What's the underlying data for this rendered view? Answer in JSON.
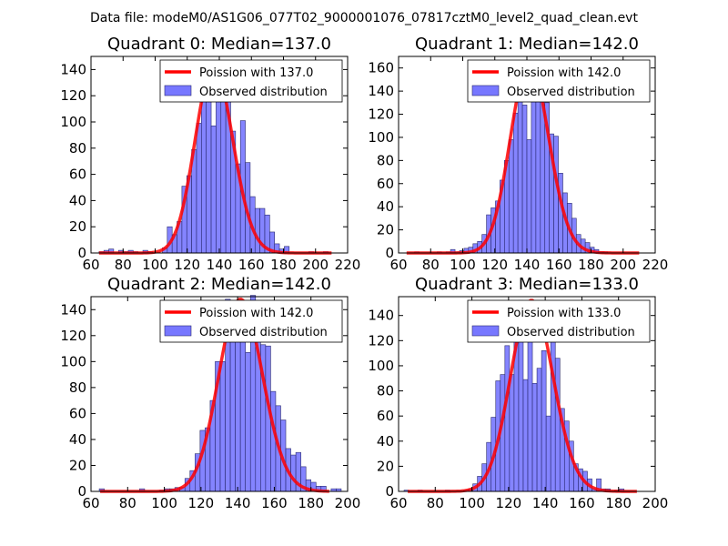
{
  "figure_title": "Data file: modeM0/AS1G06_077T02_9000001076_07817cztM0_level2_quad_clean.evt",
  "colors": {
    "bars": "#7777ff",
    "bar_edge": "#2a2a6e",
    "curve": "#ff0000",
    "background": "#ffffff"
  },
  "chart_data": [
    {
      "type": "bar",
      "title": "Quadrant 0: Median=137.0",
      "median": 137.0,
      "legend": [
        "Poission with 137.0",
        "Observed distribution"
      ],
      "legend_location": "top-right",
      "xlim": [
        60,
        220
      ],
      "ylim": [
        0,
        150
      ],
      "xticks": [
        60,
        80,
        100,
        120,
        140,
        160,
        180,
        200,
        220
      ],
      "yticks": [
        0,
        20,
        40,
        60,
        80,
        100,
        120,
        140
      ],
      "bins": {
        "start": 65,
        "width": 3.04,
        "counts": [
          1,
          2,
          3,
          0,
          2,
          1,
          2,
          1,
          0,
          2,
          1,
          0,
          0,
          4,
          20,
          14,
          24,
          51,
          59,
          79,
          99,
          142,
          143,
          97,
          130,
          130,
          133,
          93,
          68,
          101,
          69,
          43,
          34,
          34,
          29,
          16,
          7,
          3,
          5,
          0,
          0,
          0,
          0,
          1,
          0,
          0,
          1,
          0,
          0,
          0
        ]
      },
      "poisson": {
        "mean": 137.0,
        "peak": 143
      }
    },
    {
      "type": "bar",
      "title": "Quadrant 1: Median=142.0",
      "median": 142.0,
      "legend": [
        "Poission with 142.0",
        "Observed distribution"
      ],
      "legend_location": "top-right",
      "xlim": [
        60,
        220
      ],
      "ylim": [
        0,
        170
      ],
      "xticks": [
        60,
        80,
        100,
        120,
        140,
        160,
        180,
        200,
        220
      ],
      "yticks": [
        0,
        20,
        40,
        60,
        80,
        100,
        120,
        140,
        160
      ],
      "bins": {
        "start": 70,
        "width": 2.8,
        "counts": [
          1,
          0,
          0,
          0,
          0,
          1,
          0,
          1,
          3,
          1,
          2,
          4,
          5,
          8,
          10,
          16,
          33,
          39,
          45,
          63,
          80,
          98,
          121,
          150,
          128,
          98,
          135,
          165,
          154,
          130,
          103,
          101,
          69,
          52,
          43,
          30,
          16,
          12,
          9,
          5,
          3,
          1,
          1,
          0,
          0,
          0,
          0,
          0,
          0,
          0
        ]
      },
      "poisson": {
        "mean": 142.0,
        "peak": 165
      }
    },
    {
      "type": "bar",
      "title": "Quadrant 2: Median=142.0",
      "median": 142.0,
      "legend": [
        "Poission with 142.0",
        "Observed distribution"
      ],
      "legend_location": "top-right",
      "xlim": [
        60,
        200
      ],
      "ylim": [
        0,
        150
      ],
      "xticks": [
        60,
        80,
        100,
        120,
        140,
        160,
        180,
        200
      ],
      "yticks": [
        0,
        20,
        40,
        60,
        80,
        100,
        120,
        140
      ],
      "bins": {
        "start": 64.5,
        "width": 2.75,
        "counts": [
          2,
          0,
          0,
          0,
          0,
          0,
          0,
          0,
          2,
          0,
          0,
          0,
          1,
          2,
          2,
          3,
          3,
          10,
          16,
          29,
          47,
          49,
          70,
          100,
          100,
          148,
          141,
          135,
          133,
          107,
          151,
          141,
          113,
          112,
          77,
          66,
          55,
          33,
          28,
          30,
          19,
          9,
          7,
          4,
          4,
          0,
          2,
          2,
          0
        ]
      },
      "poisson": {
        "mean": 142.0,
        "peak": 148
      }
    },
    {
      "type": "bar",
      "title": "Quadrant 3: Median=133.0",
      "median": 133.0,
      "legend": [
        "Poission with 133.0",
        "Observed distribution"
      ],
      "legend_location": "top-right",
      "xlim": [
        60,
        200
      ],
      "ylim": [
        0,
        155
      ],
      "xticks": [
        60,
        80,
        100,
        120,
        140,
        160,
        180,
        200
      ],
      "yticks": [
        0,
        20,
        40,
        60,
        80,
        100,
        120,
        140
      ],
      "bins": {
        "start": 63,
        "width": 2.5,
        "counts": [
          1,
          0,
          0,
          1,
          0,
          0,
          0,
          0,
          0,
          1,
          0,
          0,
          0,
          1,
          2,
          6,
          12,
          22,
          39,
          59,
          88,
          93,
          116,
          93,
          134,
          152,
          89,
          130,
          86,
          98,
          112,
          60,
          131,
          106,
          66,
          56,
          40,
          22,
          18,
          16,
          10,
          2,
          10,
          2,
          2,
          0,
          1,
          2,
          0,
          0
        ]
      },
      "poisson": {
        "mean": 133.0,
        "peak": 152
      }
    }
  ]
}
